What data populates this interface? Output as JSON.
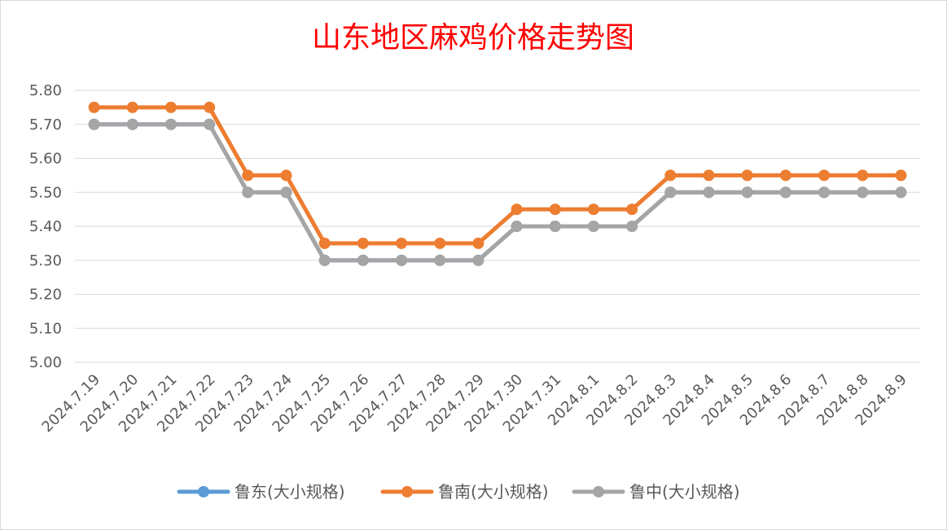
{
  "chart_data": {
    "type": "line",
    "title": "山东地区麻鸡价格走势图",
    "xlabel": "",
    "ylabel": "",
    "ylim": [
      5.0,
      5.8
    ],
    "yticks": [
      "5.00",
      "5.10",
      "5.20",
      "5.30",
      "5.40",
      "5.50",
      "5.60",
      "5.70",
      "5.80"
    ],
    "grid": true,
    "legend_position": "bottom",
    "categories": [
      "2024.7.19",
      "2024.7.20",
      "2024.7.21",
      "2024.7.22",
      "2024.7.23",
      "2024.7.24",
      "2024.7.25",
      "2024.7.26",
      "2024.7.27",
      "2024.7.28",
      "2024.7.29",
      "2024.7.30",
      "2024.7.31",
      "2024.8.1",
      "2024.8.2",
      "2024.8.3",
      "2024.8.4",
      "2024.8.5",
      "2024.8.6",
      "2024.8.7",
      "2024.8.8",
      "2024.8.9"
    ],
    "series": [
      {
        "name": "鲁东(大小规格)",
        "color": "#5b9bd5",
        "values": [
          5.7,
          5.7,
          5.7,
          5.7,
          5.5,
          5.5,
          5.3,
          5.3,
          5.3,
          5.3,
          5.3,
          5.4,
          5.4,
          5.4,
          5.4,
          5.5,
          5.5,
          5.5,
          5.5,
          5.5,
          5.5,
          5.5
        ]
      },
      {
        "name": "鲁南(大小规格)",
        "color": "#ed7d31",
        "values": [
          5.75,
          5.75,
          5.75,
          5.75,
          5.55,
          5.55,
          5.35,
          5.35,
          5.35,
          5.35,
          5.35,
          5.45,
          5.45,
          5.45,
          5.45,
          5.55,
          5.55,
          5.55,
          5.55,
          5.55,
          5.55,
          5.55
        ]
      },
      {
        "name": "鲁中(大小规格)",
        "color": "#a5a5a5",
        "values": [
          5.7,
          5.7,
          5.7,
          5.7,
          5.5,
          5.5,
          5.3,
          5.3,
          5.3,
          5.3,
          5.3,
          5.4,
          5.4,
          5.4,
          5.4,
          5.5,
          5.5,
          5.5,
          5.5,
          5.5,
          5.5,
          5.5
        ]
      }
    ]
  }
}
